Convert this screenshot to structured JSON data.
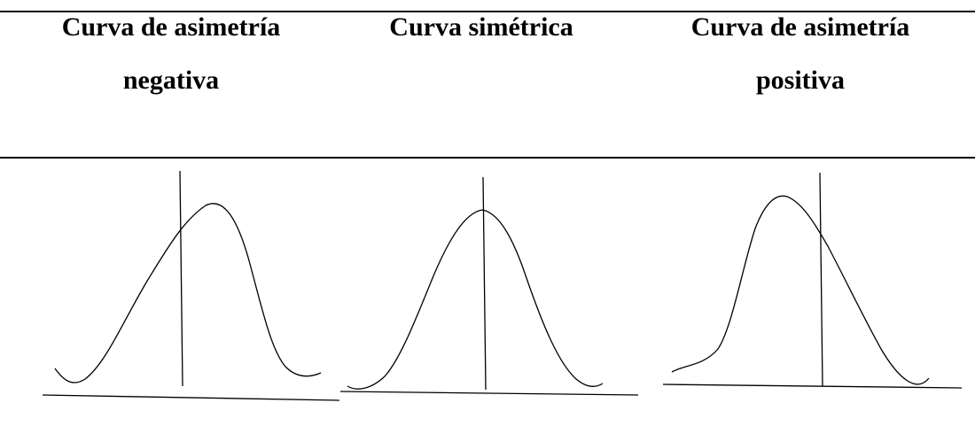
{
  "headers": [
    {
      "line1": "Curva de asimetría",
      "line2": "negativa"
    },
    {
      "line1": "Curva simétrica",
      "line2": ""
    },
    {
      "line1": "Curva de asimetría",
      "line2": "positiva"
    }
  ],
  "curves": [
    {
      "kind": "negative-skew"
    },
    {
      "kind": "symmetric"
    },
    {
      "kind": "positive-skew"
    }
  ]
}
